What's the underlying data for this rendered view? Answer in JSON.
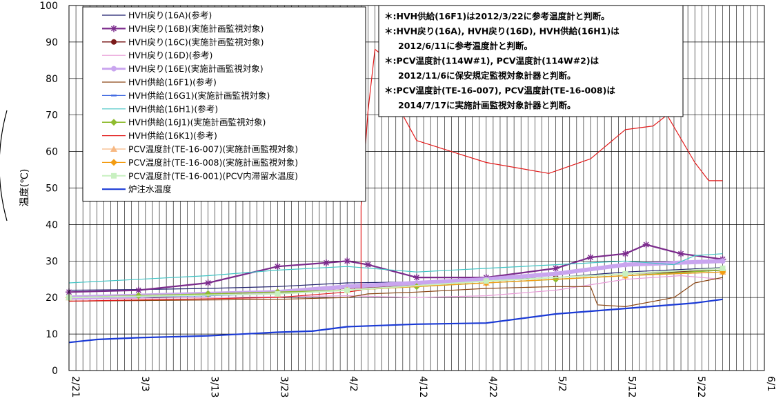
{
  "chart_data": {
    "type": "line",
    "ylabel": "温度(℃)",
    "ylim": [
      0,
      100
    ],
    "yticks": [
      0,
      10,
      20,
      30,
      40,
      50,
      60,
      70,
      80,
      90,
      100
    ],
    "x_start": "2/21",
    "x_end": "6/1",
    "x_tick_labels": [
      "2/21",
      "3/3",
      "3/13",
      "3/23",
      "4/2",
      "4/12",
      "4/22",
      "5/2",
      "5/12",
      "5/22",
      "6/1"
    ],
    "grid": true,
    "legend_position": "top-left",
    "notes": [
      "＊:HVH供給(16F1)は2012/3/22に参考温度計と判断。",
      "＊:HVH戻り(16A), HVH戻り(16D), HVH供給(16H1)は",
      "2012/6/11に参考温度計と判断。",
      "＊:PCV温度計(114W#1), PCV温度計(114W#2)は",
      "2012/11/6に保安規定監視対象計器と判断。",
      "＊:PCV温度計(TE-16-007), PCV温度計(TE-16-008)は",
      "2014/7/17に実施計画監視対象計器と判断。"
    ],
    "series": [
      {
        "name": "HVH戻り(16A)(参考)",
        "color": "#1f1f6e",
        "width": 1.2,
        "marker": "none",
        "points": [
          [
            "2/21",
            22.0
          ],
          [
            "3/3",
            22.2
          ],
          [
            "3/13",
            22.5
          ],
          [
            "3/23",
            23.0
          ],
          [
            "4/2",
            24.0
          ],
          [
            "4/12",
            24.3
          ],
          [
            "4/22",
            24.8
          ],
          [
            "5/2",
            25.5
          ],
          [
            "5/12",
            27.0
          ],
          [
            "5/26",
            28.2
          ]
        ]
      },
      {
        "name": "HVH戻り(16B)(実施計画監視対象)",
        "color": "#7b2a8c",
        "width": 2.2,
        "marker": "star",
        "points": [
          [
            "2/21",
            21.5
          ],
          [
            "3/3",
            22.0
          ],
          [
            "3/13",
            24.0
          ],
          [
            "3/23",
            28.5
          ],
          [
            "3/30",
            29.5
          ],
          [
            "4/2",
            30.0
          ],
          [
            "4/5",
            29.0
          ],
          [
            "4/12",
            25.5
          ],
          [
            "4/22",
            25.5
          ],
          [
            "5/2",
            28.0
          ],
          [
            "5/7",
            31.0
          ],
          [
            "5/12",
            32.0
          ],
          [
            "5/15",
            34.5
          ],
          [
            "5/20",
            32.0
          ],
          [
            "5/26",
            30.5
          ]
        ]
      },
      {
        "name": "HVH戻り(16C)(実施計画監視対象)",
        "color": "#7a1a1a",
        "width": 1.5,
        "marker": "circle",
        "points": [
          [
            "2/21",
            20.0
          ],
          [
            "3/3",
            20.5
          ],
          [
            "3/13",
            21.0
          ],
          [
            "3/23",
            21.5
          ],
          [
            "4/2",
            22.5
          ],
          [
            "4/12",
            23.5
          ],
          [
            "4/22",
            24.5
          ],
          [
            "5/2",
            25.5
          ],
          [
            "5/12",
            26.5
          ],
          [
            "5/26",
            27.5
          ]
        ]
      },
      {
        "name": "HVH戻り(16D)(参考)",
        "color": "#e79ad6",
        "width": 1.2,
        "marker": "none",
        "points": [
          [
            "2/21",
            19.5
          ],
          [
            "3/3",
            19.8
          ],
          [
            "3/13",
            20.0
          ],
          [
            "3/23",
            20.2
          ],
          [
            "4/2",
            20.5
          ],
          [
            "4/12",
            20.0
          ],
          [
            "4/22",
            20.5
          ],
          [
            "5/2",
            22.0
          ],
          [
            "5/12",
            25.0
          ],
          [
            "5/20",
            26.0
          ],
          [
            "5/26",
            25.0
          ]
        ]
      },
      {
        "name": "HVH戻り(16E)(実施計画監視対象)",
        "color": "#c9a5ef",
        "width": 6.0,
        "marker": "circle",
        "points": [
          [
            "2/21",
            20.0
          ],
          [
            "3/3",
            20.5
          ],
          [
            "3/13",
            21.0
          ],
          [
            "3/23",
            21.5
          ],
          [
            "4/2",
            23.0
          ],
          [
            "4/12",
            24.0
          ],
          [
            "4/22",
            25.0
          ],
          [
            "5/2",
            26.5
          ],
          [
            "5/12",
            29.0
          ],
          [
            "5/26",
            30.0
          ]
        ]
      },
      {
        "name": "HVH供給(16F1)(参考)",
        "color": "#8b4513",
        "width": 1.2,
        "marker": "none",
        "points": [
          [
            "2/21",
            19.0
          ],
          [
            "3/23",
            19.5
          ],
          [
            "4/2",
            20.0
          ],
          [
            "4/5",
            21.0
          ],
          [
            "4/12",
            21.5
          ],
          [
            "4/22",
            22.5
          ],
          [
            "5/2",
            23.0
          ],
          [
            "5/7",
            23.0
          ],
          [
            "5/8",
            18.0
          ],
          [
            "5/12",
            17.5
          ],
          [
            "5/19",
            20.0
          ],
          [
            "5/22",
            24.0
          ],
          [
            "5/26",
            25.5
          ]
        ]
      },
      {
        "name": "HVH供給(16G1)(実施計画監視対象)",
        "color": "#4169e1",
        "width": 1.2,
        "marker": "dash",
        "points": [
          [
            "2/21",
            20.0
          ],
          [
            "3/3",
            20.2
          ],
          [
            "3/13",
            20.5
          ],
          [
            "3/23",
            21.0
          ],
          [
            "4/2",
            22.0
          ],
          [
            "4/12",
            23.0
          ],
          [
            "4/22",
            24.0
          ],
          [
            "5/2",
            25.0
          ],
          [
            "5/12",
            26.0
          ],
          [
            "5/26",
            27.0
          ]
        ]
      },
      {
        "name": "HVH供給(16H1)(参考)",
        "color": "#40c4c4",
        "width": 1.2,
        "marker": "none",
        "points": [
          [
            "2/21",
            24.0
          ],
          [
            "3/3",
            25.0
          ],
          [
            "3/13",
            26.0
          ],
          [
            "3/23",
            27.5
          ],
          [
            "4/2",
            28.5
          ],
          [
            "4/12",
            27.0
          ],
          [
            "4/22",
            28.0
          ],
          [
            "5/2",
            29.0
          ],
          [
            "5/12",
            30.0
          ],
          [
            "5/19",
            29.0
          ],
          [
            "5/22",
            31.5
          ],
          [
            "5/26",
            32.0
          ]
        ]
      },
      {
        "name": "HVH供給(16J1)(実施計画監視対象)",
        "color": "#8fbc2f",
        "width": 1.6,
        "marker": "diamond",
        "points": [
          [
            "2/21",
            20.0
          ],
          [
            "3/3",
            20.5
          ],
          [
            "3/13",
            21.0
          ],
          [
            "3/23",
            21.5
          ],
          [
            "4/2",
            22.0
          ],
          [
            "4/12",
            23.0
          ],
          [
            "4/22",
            24.0
          ],
          [
            "5/2",
            25.0
          ],
          [
            "5/12",
            26.0
          ],
          [
            "5/26",
            27.5
          ]
        ]
      },
      {
        "name": "HVH供給(16K1)(参考)",
        "color": "#e21b1b",
        "width": 1.2,
        "marker": "none",
        "points": [
          [
            "2/21",
            19.0
          ],
          [
            "3/23",
            20.0
          ],
          [
            "4/2",
            21.5
          ],
          [
            "4/4",
            22.0
          ],
          [
            "4/4",
            45.0
          ],
          [
            "4/5",
            71.0
          ],
          [
            "4/6",
            88.0
          ],
          [
            "4/8",
            85.0
          ],
          [
            "4/10",
            70.0
          ],
          [
            "4/12",
            63.0
          ],
          [
            "4/22",
            57.0
          ],
          [
            "5/1",
            54.0
          ],
          [
            "5/7",
            58.0
          ],
          [
            "5/12",
            66.0
          ],
          [
            "5/16",
            67.0
          ],
          [
            "5/18",
            70.0
          ],
          [
            "5/22",
            57.0
          ],
          [
            "5/24",
            52.0
          ],
          [
            "5/26",
            52.0
          ]
        ]
      },
      {
        "name": "PCV温度計(TE-16-007)(実施計画監視対象)",
        "color": "#f7b882",
        "width": 1.2,
        "marker": "triangle",
        "points": [
          [
            "2/21",
            20.0
          ],
          [
            "3/23",
            21.0
          ],
          [
            "4/2",
            22.0
          ],
          [
            "4/22",
            24.0
          ],
          [
            "5/12",
            26.0
          ],
          [
            "5/26",
            27.0
          ]
        ]
      },
      {
        "name": "PCV温度計(TE-16-008)(実施計画監視対象)",
        "color": "#f39c12",
        "width": 1.2,
        "marker": "diamond",
        "points": [
          [
            "2/21",
            20.0
          ],
          [
            "3/23",
            21.0
          ],
          [
            "4/2",
            22.0
          ],
          [
            "4/22",
            24.0
          ],
          [
            "5/12",
            26.0
          ],
          [
            "5/26",
            27.0
          ]
        ]
      },
      {
        "name": "PCV温度計(TE-16-001)(PCV内滞留水温度)",
        "color": "#c8f0c0",
        "width": 2.0,
        "marker": "square",
        "points": [
          [
            "2/21",
            20.0
          ],
          [
            "3/23",
            21.0
          ],
          [
            "4/2",
            22.0
          ],
          [
            "4/22",
            24.5
          ],
          [
            "5/12",
            26.5
          ],
          [
            "5/26",
            28.0
          ]
        ]
      },
      {
        "name": "炉注水温度",
        "color": "#1a3ad6",
        "width": 2.2,
        "marker": "none",
        "points": [
          [
            "2/21",
            7.7
          ],
          [
            "2/25",
            8.5
          ],
          [
            "3/3",
            9.0
          ],
          [
            "3/13",
            9.5
          ],
          [
            "3/23",
            10.5
          ],
          [
            "3/28",
            10.8
          ],
          [
            "4/2",
            12.0
          ],
          [
            "4/12",
            12.7
          ],
          [
            "4/22",
            13.0
          ],
          [
            "5/2",
            15.5
          ],
          [
            "5/12",
            17.0
          ],
          [
            "5/22",
            18.5
          ],
          [
            "5/26",
            19.5
          ]
        ]
      }
    ]
  }
}
